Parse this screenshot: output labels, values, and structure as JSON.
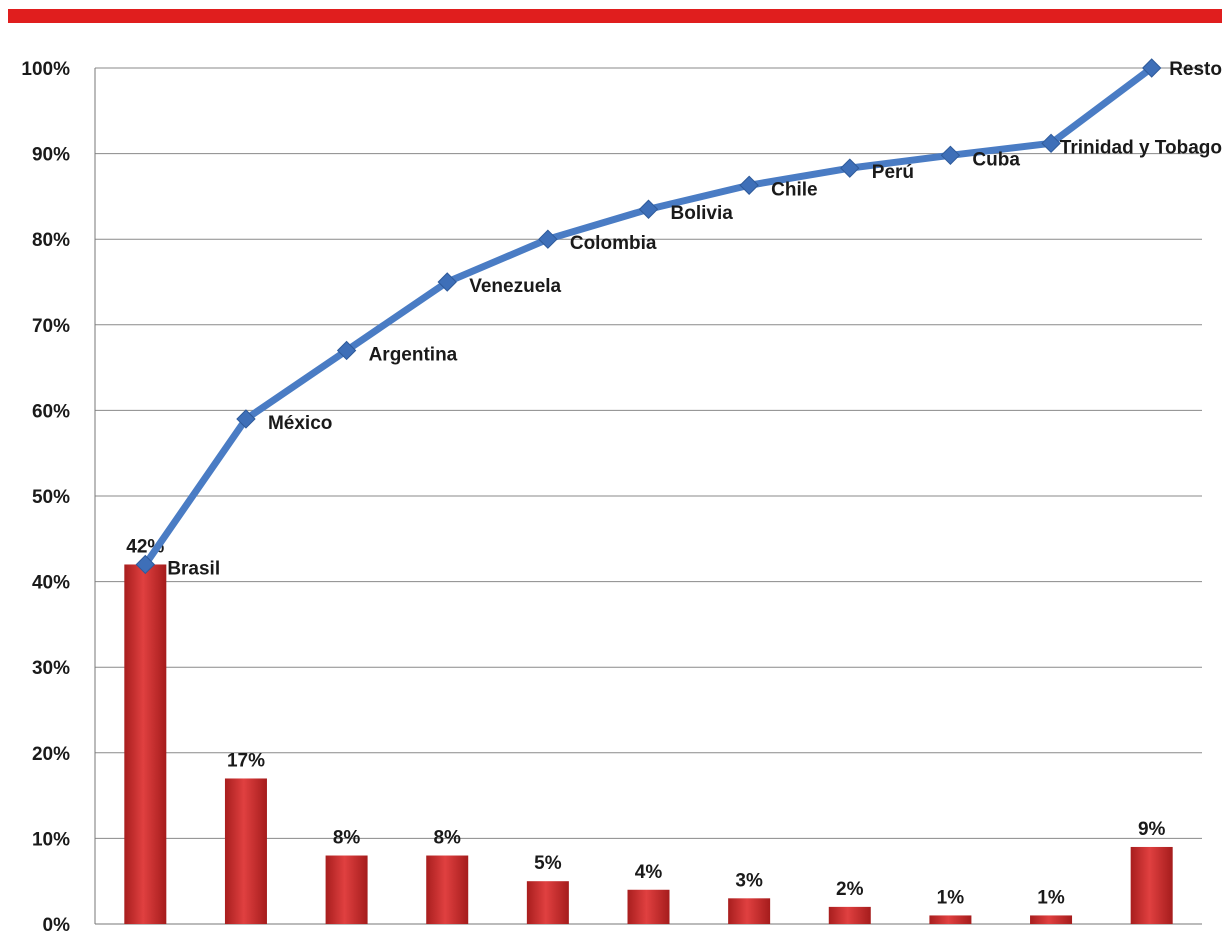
{
  "chart_data": {
    "type": "bar",
    "categories": [
      "Brasil",
      "México",
      "Argentina",
      "Venezuela",
      "Colombia",
      "Bolivia",
      "Chile",
      "Perú",
      "Cuba",
      "Trinidad y Tobago",
      "Resto"
    ],
    "series": [
      {
        "type": "bar",
        "values": [
          42,
          17,
          8,
          8,
          5,
          4,
          3,
          2,
          1,
          1,
          9
        ],
        "labels": [
          "42%",
          "17%",
          "8%",
          "8%",
          "5%",
          "4%",
          "3%",
          "2%",
          "1%",
          "1%",
          "9%"
        ],
        "color": "#c62a2a"
      },
      {
        "type": "line",
        "values": [
          42,
          59,
          67,
          75,
          80,
          83.5,
          86.3,
          88.3,
          89.8,
          91.2,
          100
        ],
        "color": "#4a7cc4"
      }
    ],
    "ylim": [
      0,
      100
    ],
    "yticks": [
      "0%",
      "10%",
      "20%",
      "30%",
      "40%",
      "50%",
      "60%",
      "70%",
      "80%",
      "90%",
      "100%"
    ],
    "grid": true,
    "top_bar_color": "#e01e1e"
  }
}
